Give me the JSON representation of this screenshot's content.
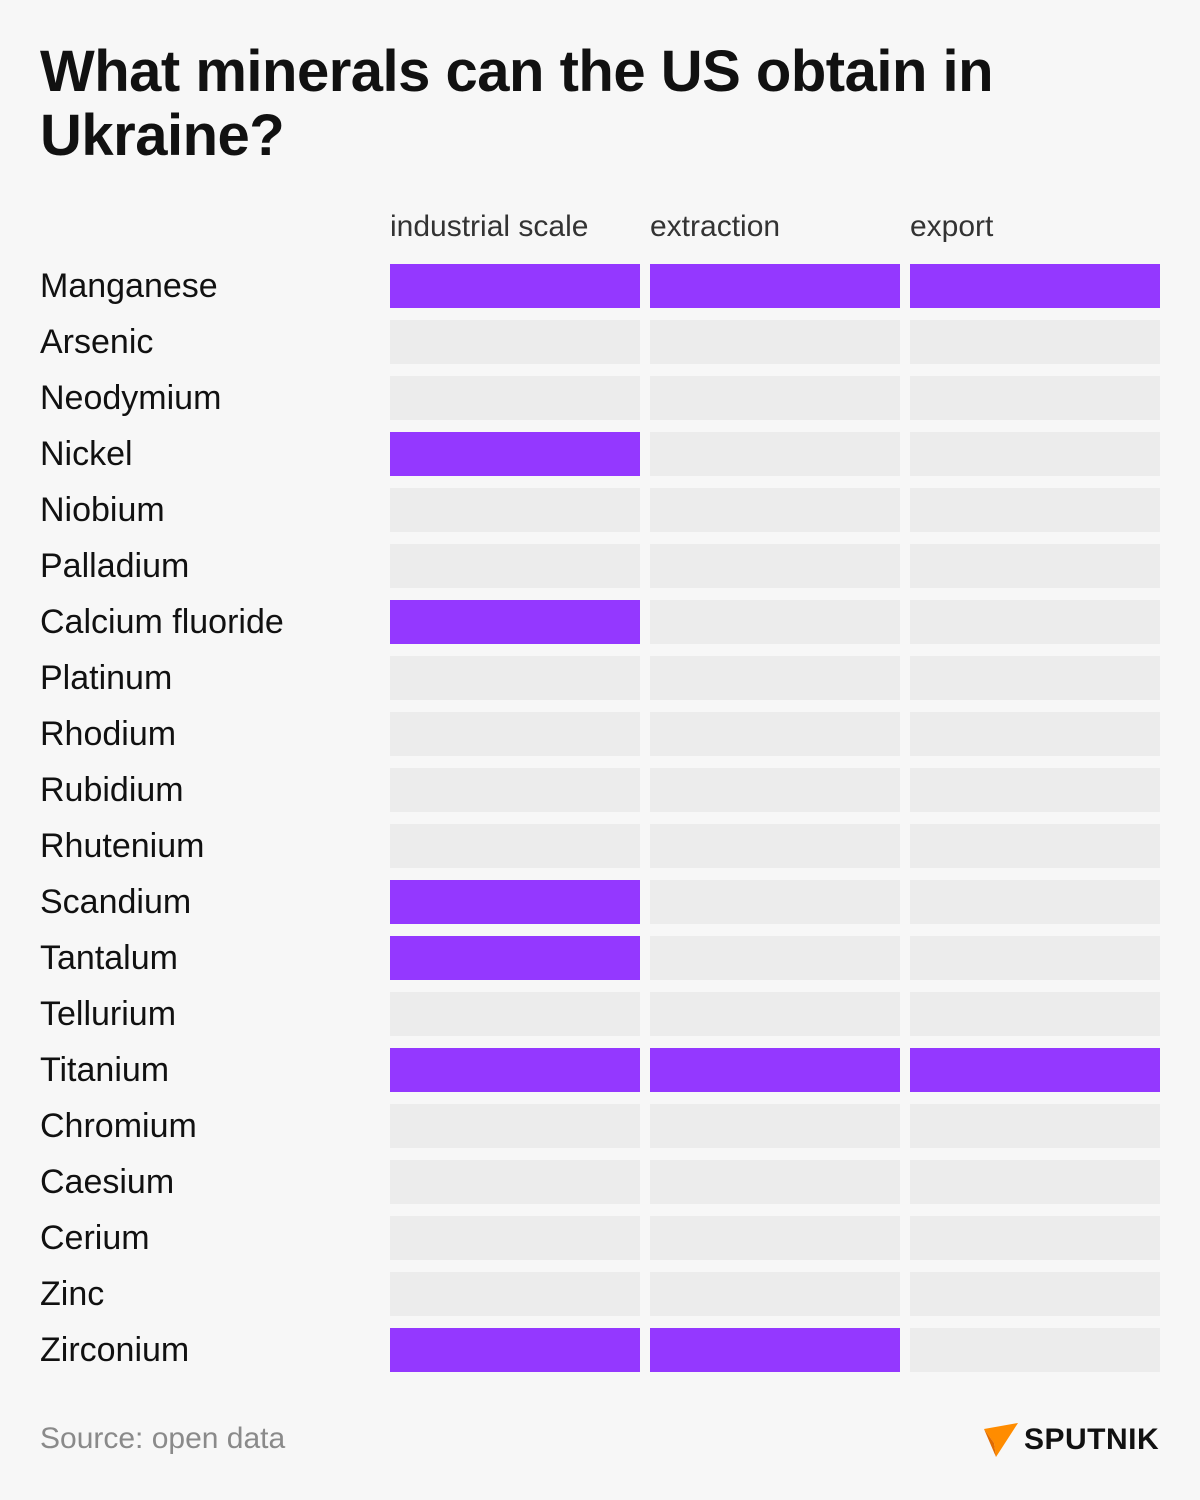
{
  "chart_data": {
    "type": "table",
    "title": "What minerals can the US obtain in Ukraine?",
    "columns": [
      "industrial scale",
      "extraction",
      "export"
    ],
    "rows": [
      {
        "name": "Manganese",
        "values": [
          1,
          1,
          1
        ]
      },
      {
        "name": "Arsenic",
        "values": [
          0,
          0,
          0
        ]
      },
      {
        "name": "Neodymium",
        "values": [
          0,
          0,
          0
        ]
      },
      {
        "name": "Nickel",
        "values": [
          1,
          0,
          0
        ]
      },
      {
        "name": "Niobium",
        "values": [
          0,
          0,
          0
        ]
      },
      {
        "name": "Palladium",
        "values": [
          0,
          0,
          0
        ]
      },
      {
        "name": "Calcium fluoride",
        "values": [
          1,
          0,
          0
        ]
      },
      {
        "name": "Platinum",
        "values": [
          0,
          0,
          0
        ]
      },
      {
        "name": "Rhodium",
        "values": [
          0,
          0,
          0
        ]
      },
      {
        "name": "Rubidium",
        "values": [
          0,
          0,
          0
        ]
      },
      {
        "name": "Rhutenium",
        "values": [
          0,
          0,
          0
        ]
      },
      {
        "name": "Scandium",
        "values": [
          1,
          0,
          0
        ]
      },
      {
        "name": "Tantalum",
        "values": [
          1,
          0,
          0
        ]
      },
      {
        "name": "Tellurium",
        "values": [
          0,
          0,
          0
        ]
      },
      {
        "name": "Titanium",
        "values": [
          1,
          1,
          1
        ]
      },
      {
        "name": "Chromium",
        "values": [
          0,
          0,
          0
        ]
      },
      {
        "name": "Caesium",
        "values": [
          0,
          0,
          0
        ]
      },
      {
        "name": "Cerium",
        "values": [
          0,
          0,
          0
        ]
      },
      {
        "name": "Zinc",
        "values": [
          0,
          0,
          0
        ]
      },
      {
        "name": "Zirconium",
        "values": [
          1,
          1,
          0
        ]
      }
    ],
    "colors": {
      "on": "#9438ff",
      "off": "#ececec"
    }
  },
  "footer": {
    "source": "Source: open data",
    "brand": "SPUTNIK",
    "brand_icon": "sputnik-logo-icon",
    "brand_color": "#ff8c00"
  }
}
